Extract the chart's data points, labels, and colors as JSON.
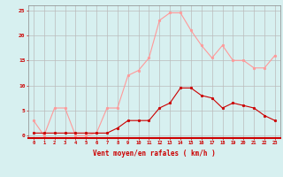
{
  "x": [
    0,
    1,
    2,
    3,
    4,
    5,
    6,
    7,
    8,
    9,
    10,
    11,
    12,
    13,
    14,
    15,
    16,
    17,
    18,
    19,
    20,
    21,
    22,
    23
  ],
  "rafales": [
    3,
    0,
    5.5,
    5.5,
    0,
    0,
    0.5,
    5.5,
    5.5,
    12,
    13,
    15.5,
    23,
    24.5,
    24.5,
    21,
    18,
    15.5,
    18,
    15,
    15,
    13.5,
    13.5,
    16
  ],
  "moyen": [
    0.5,
    0.5,
    0.5,
    0.5,
    0.5,
    0.5,
    0.5,
    0.5,
    1.5,
    3,
    3,
    3,
    5.5,
    6.5,
    9.5,
    9.5,
    8,
    7.5,
    5.5,
    6.5,
    6,
    5.5,
    4,
    3
  ],
  "color_rafales": "#ff9999",
  "color_moyen": "#cc0000",
  "bg_color": "#d7f0f0",
  "grid_color": "#bbbbbb",
  "xlabel": "Vent moyen/en rafales ( km/h )",
  "xlabel_color": "#cc0000",
  "tick_color": "#cc0000",
  "spine_color": "#888888",
  "bottom_spine_color": "#cc0000",
  "ylim": [
    -0.5,
    26
  ],
  "yticks": [
    0,
    5,
    10,
    15,
    20,
    25
  ],
  "xlim": [
    -0.5,
    23.5
  ]
}
